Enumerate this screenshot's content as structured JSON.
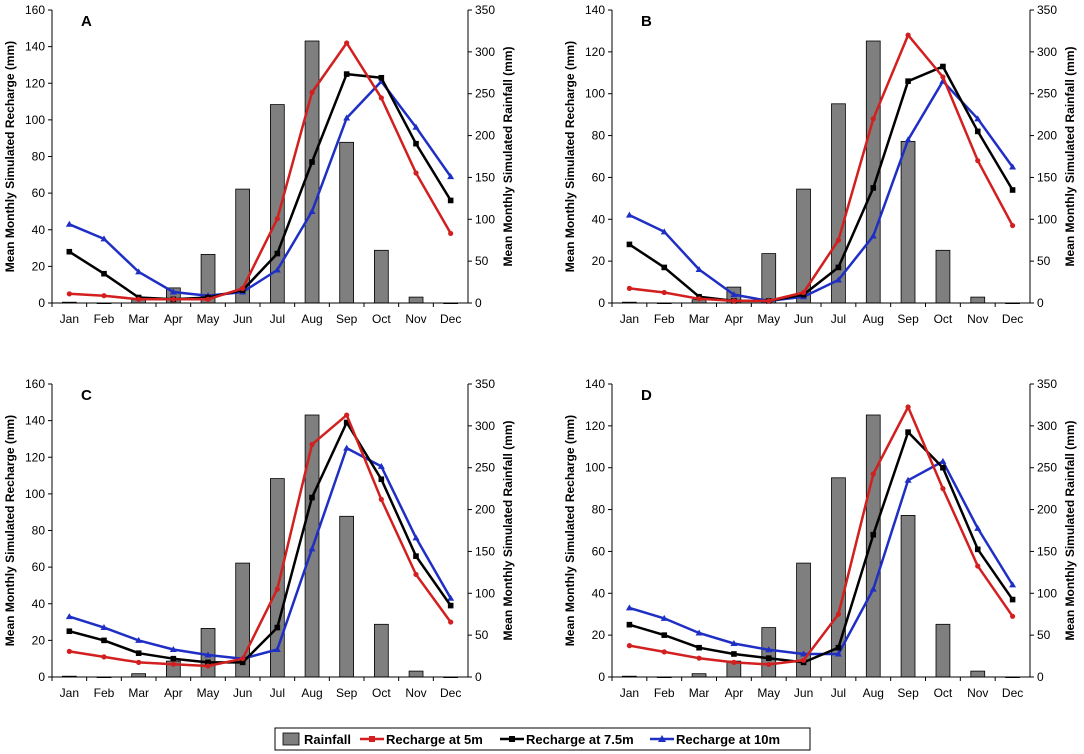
{
  "legend": {
    "rainfall": "Rainfall",
    "r5": "Recharge at 5m",
    "r75": "Recharge at 7.5m",
    "r10": "Recharge at 10m"
  },
  "colors": {
    "bar": "#7f7f7f",
    "r5": "#d21f1f",
    "r75": "#000000",
    "r10": "#1f2fc4"
  },
  "chart_data": [
    {
      "type": "bar+line",
      "panel": "A",
      "categories": [
        "Jan",
        "Feb",
        "Mar",
        "Apr",
        "May",
        "Jun",
        "Jul",
        "Aug",
        "Sep",
        "Oct",
        "Nov",
        "Dec"
      ],
      "ylabel_left": "Mean Monthly Simulated Recharge (mm)",
      "ylabel_right": "Mean Monthly Simulated Rainfall (mm)",
      "ylim_left": [
        0,
        160
      ],
      "yticks_left": [
        0,
        20,
        40,
        60,
        80,
        100,
        120,
        140,
        160
      ],
      "ylim_right": [
        0,
        350
      ],
      "yticks_right": [
        0,
        50,
        100,
        150,
        200,
        250,
        300,
        350
      ],
      "rainfall": [
        1,
        0,
        4,
        18,
        58,
        136,
        237,
        313,
        192,
        63,
        7,
        0
      ],
      "series": [
        {
          "name": "Recharge at 5m",
          "values": [
            5,
            4,
            2,
            2,
            2,
            8,
            46,
            115,
            142,
            112,
            71,
            38
          ]
        },
        {
          "name": "Recharge at 7.5m",
          "values": [
            28,
            16,
            3,
            2,
            3,
            7,
            27,
            77,
            125,
            123,
            87,
            56
          ]
        },
        {
          "name": "Recharge at 10m",
          "values": [
            43,
            35,
            17,
            6,
            4,
            6,
            18,
            50,
            101,
            121,
            96,
            69
          ]
        }
      ]
    },
    {
      "type": "bar+line",
      "panel": "B",
      "categories": [
        "Jan",
        "Feb",
        "Mar",
        "Apr",
        "May",
        "Jun",
        "Jul",
        "Aug",
        "Sep",
        "Oct",
        "Nov",
        "Dec"
      ],
      "ylabel_left": "Mean Monthly Simulated Recharge (mm)",
      "ylabel_right": "Mean Monthly Simulated Rainfall (mm)",
      "ylim_left": [
        0,
        140
      ],
      "yticks_left": [
        0,
        20,
        40,
        60,
        80,
        100,
        120,
        140
      ],
      "ylim_right": [
        0,
        350
      ],
      "yticks_right": [
        0,
        50,
        100,
        150,
        200,
        250,
        300,
        350
      ],
      "rainfall": [
        1,
        0,
        4,
        19,
        59,
        136,
        238,
        313,
        193,
        63,
        7,
        0
      ],
      "series": [
        {
          "name": "Recharge at 5m",
          "values": [
            7,
            5,
            2,
            1,
            1,
            5,
            30,
            88,
            128,
            108,
            68,
            37
          ]
        },
        {
          "name": "Recharge at 7.5m",
          "values": [
            28,
            17,
            3,
            1,
            1,
            4,
            17,
            55,
            106,
            113,
            82,
            54
          ]
        },
        {
          "name": "Recharge at 10m",
          "values": [
            42,
            34,
            16,
            4,
            1,
            3,
            11,
            32,
            78,
            106,
            88,
            65
          ]
        }
      ]
    },
    {
      "type": "bar+line",
      "panel": "C",
      "categories": [
        "Jan",
        "Feb",
        "Mar",
        "Apr",
        "May",
        "Jun",
        "Jul",
        "Aug",
        "Sep",
        "Oct",
        "Nov",
        "Dec"
      ],
      "ylabel_left": "Mean Monthly Simulated Recharge (mm)",
      "ylabel_right": "Mean Monthly Simulated Rainfall (mm)",
      "ylim_left": [
        0,
        160
      ],
      "yticks_left": [
        0,
        20,
        40,
        60,
        80,
        100,
        120,
        140,
        160
      ],
      "ylim_right": [
        0,
        350
      ],
      "yticks_right": [
        0,
        50,
        100,
        150,
        200,
        250,
        300,
        350
      ],
      "rainfall": [
        1,
        0,
        4,
        19,
        58,
        136,
        237,
        313,
        192,
        63,
        7,
        0
      ],
      "series": [
        {
          "name": "Recharge at 5m",
          "values": [
            14,
            11,
            8,
            7,
            6,
            10,
            48,
            127,
            143,
            97,
            56,
            30
          ]
        },
        {
          "name": "Recharge at 7.5m",
          "values": [
            25,
            20,
            13,
            10,
            8,
            8,
            27,
            98,
            139,
            108,
            66,
            39
          ]
        },
        {
          "name": "Recharge at 10m",
          "values": [
            33,
            27,
            20,
            15,
            12,
            10,
            15,
            70,
            125,
            115,
            76,
            43
          ]
        }
      ]
    },
    {
      "type": "bar+line",
      "panel": "D",
      "categories": [
        "Jan",
        "Feb",
        "Mar",
        "Apr",
        "May",
        "Jun",
        "Jul",
        "Aug",
        "Sep",
        "Oct",
        "Nov",
        "Dec"
      ],
      "ylabel_left": "Mean Monthly Simulated Recharge (mm)",
      "ylabel_right": "Mean Monthly Simulated Rainfall (mm)",
      "ylim_left": [
        0,
        140
      ],
      "yticks_left": [
        0,
        20,
        40,
        60,
        80,
        100,
        120,
        140
      ],
      "ylim_right": [
        0,
        350
      ],
      "yticks_right": [
        0,
        50,
        100,
        150,
        200,
        250,
        300,
        350
      ],
      "rainfall": [
        1,
        0,
        4,
        19,
        59,
        136,
        238,
        313,
        193,
        63,
        7,
        0
      ],
      "series": [
        {
          "name": "Recharge at 5m",
          "values": [
            15,
            12,
            9,
            7,
            6,
            8,
            30,
            97,
            129,
            90,
            53,
            29
          ]
        },
        {
          "name": "Recharge at 7.5m",
          "values": [
            25,
            20,
            14,
            11,
            9,
            7,
            14,
            68,
            117,
            100,
            61,
            37
          ]
        },
        {
          "name": "Recharge at 10m",
          "values": [
            33,
            28,
            21,
            16,
            13,
            11,
            11,
            42,
            94,
            103,
            71,
            44
          ]
        }
      ]
    }
  ]
}
